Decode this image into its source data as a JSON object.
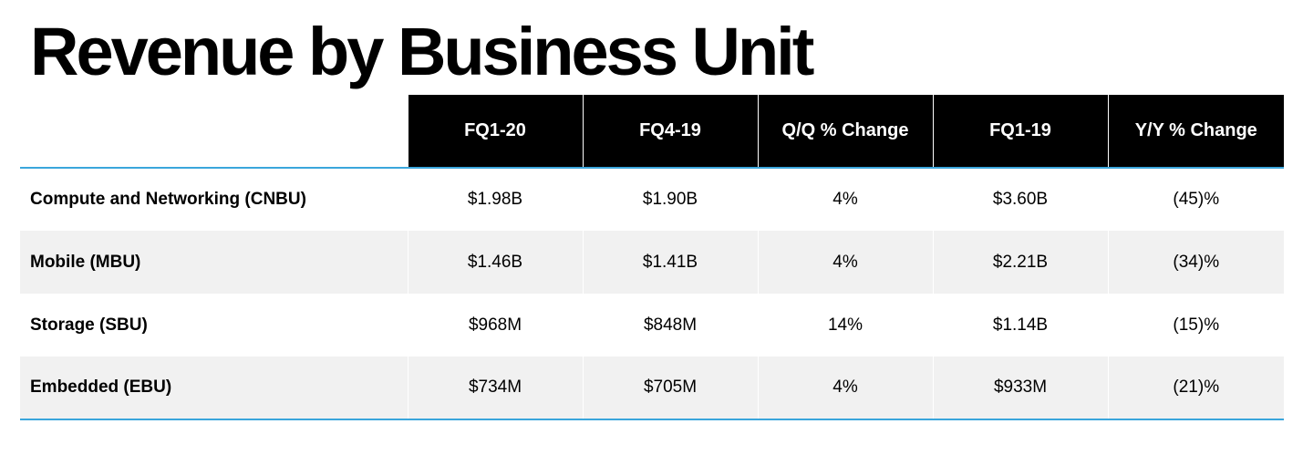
{
  "title": "Revenue by Business Unit",
  "colors": {
    "header_bg": "#000000",
    "header_text": "#ffffff",
    "accent_rule": "#3aa6dc",
    "alt_row_bg": "#f1f1f1"
  },
  "table": {
    "headers": [
      "FQ1-20",
      "FQ4-19",
      "Q/Q % Change",
      "FQ1-19",
      "Y/Y % Change"
    ],
    "rows": [
      {
        "label": "Compute and Networking (CNBU)",
        "values": [
          "$1.98B",
          "$1.90B",
          "4%",
          "$3.60B",
          "(45)%"
        ]
      },
      {
        "label": "Mobile (MBU)",
        "values": [
          "$1.46B",
          "$1.41B",
          "4%",
          "$2.21B",
          "(34)%"
        ]
      },
      {
        "label": "Storage (SBU)",
        "values": [
          "$968M",
          "$848M",
          "14%",
          "$1.14B",
          "(15)%"
        ]
      },
      {
        "label": "Embedded (EBU)",
        "values": [
          "$734M",
          "$705M",
          "4%",
          "$933M",
          "(21)%"
        ]
      }
    ]
  }
}
